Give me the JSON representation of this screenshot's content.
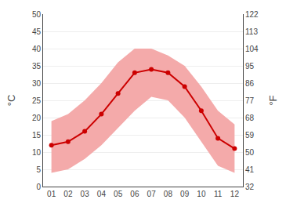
{
  "chart_data": {
    "type": "line",
    "x": [
      1,
      2,
      3,
      4,
      5,
      6,
      7,
      8,
      9,
      10,
      11,
      12
    ],
    "xlim": [
      0.5,
      12.5
    ],
    "xticks": [
      {
        "value": 1,
        "label": "01"
      },
      {
        "value": 2,
        "label": "02"
      },
      {
        "value": 3,
        "label": "03"
      },
      {
        "value": 4,
        "label": "04"
      },
      {
        "value": 5,
        "label": "05"
      },
      {
        "value": 6,
        "label": "06"
      },
      {
        "value": 7,
        "label": "07"
      },
      {
        "value": 8,
        "label": "08"
      },
      {
        "value": 9,
        "label": "09"
      },
      {
        "value": 10,
        "label": "10"
      },
      {
        "value": 11,
        "label": "11"
      },
      {
        "value": 12,
        "label": "12"
      }
    ],
    "y_label": "°C",
    "ylim": [
      0,
      50
    ],
    "yticks": [
      0,
      5,
      10,
      15,
      20,
      25,
      30,
      35,
      40,
      45,
      50
    ],
    "y2_label": "°F",
    "y2lim": [
      32,
      122
    ],
    "y2ticks": [
      32,
      41,
      50,
      59,
      68,
      77,
      86,
      95,
      104,
      113,
      122
    ],
    "grid": true,
    "series": [
      {
        "type": "band",
        "color": "#f4aaaa",
        "low": [
          4,
          5,
          8,
          12,
          17,
          22,
          26,
          25,
          20,
          13,
          6,
          4
        ],
        "high": [
          19,
          21,
          25,
          30,
          36,
          40,
          40,
          38,
          35,
          29,
          22,
          18
        ]
      },
      {
        "type": "line",
        "color": "#cc0000",
        "marker": "circle",
        "values": [
          12,
          13,
          16,
          21,
          27,
          33,
          34,
          33,
          29,
          22,
          14,
          11
        ]
      }
    ]
  }
}
